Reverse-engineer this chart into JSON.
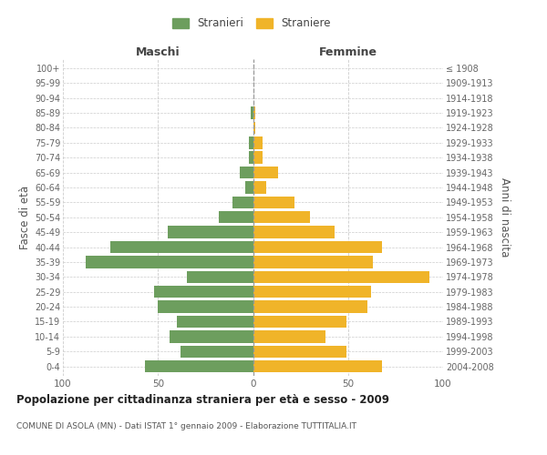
{
  "age_groups": [
    "0-4",
    "5-9",
    "10-14",
    "15-19",
    "20-24",
    "25-29",
    "30-34",
    "35-39",
    "40-44",
    "45-49",
    "50-54",
    "55-59",
    "60-64",
    "65-69",
    "70-74",
    "75-79",
    "80-84",
    "85-89",
    "90-94",
    "95-99",
    "100+"
  ],
  "birth_years": [
    "2004-2008",
    "1999-2003",
    "1994-1998",
    "1989-1993",
    "1984-1988",
    "1979-1983",
    "1974-1978",
    "1969-1973",
    "1964-1968",
    "1959-1963",
    "1954-1958",
    "1949-1953",
    "1944-1948",
    "1939-1943",
    "1934-1938",
    "1929-1933",
    "1924-1928",
    "1919-1923",
    "1914-1918",
    "1909-1913",
    "≤ 1908"
  ],
  "maschi": [
    57,
    38,
    44,
    40,
    50,
    52,
    35,
    88,
    75,
    45,
    18,
    11,
    4,
    7,
    2,
    2,
    0,
    1,
    0,
    0,
    0
  ],
  "femmine": [
    68,
    49,
    38,
    49,
    60,
    62,
    93,
    63,
    68,
    43,
    30,
    22,
    7,
    13,
    5,
    5,
    1,
    1,
    0,
    0,
    0
  ],
  "color_maschi": "#6d9e5e",
  "color_femmine": "#f0b429",
  "title": "Popolazione per cittadinanza straniera per età e sesso - 2009",
  "subtitle": "COMUNE DI ASOLA (MN) - Dati ISTAT 1° gennaio 2009 - Elaborazione TUTTITALIA.IT",
  "ylabel_left": "Fasce di età",
  "ylabel_right": "Anni di nascita",
  "xlabel_left": "Maschi",
  "xlabel_right": "Femmine",
  "legend_maschi": "Stranieri",
  "legend_femmine": "Straniere",
  "xlim": 100,
  "bg_color": "#ffffff",
  "grid_color": "#cccccc",
  "bar_height": 0.82
}
